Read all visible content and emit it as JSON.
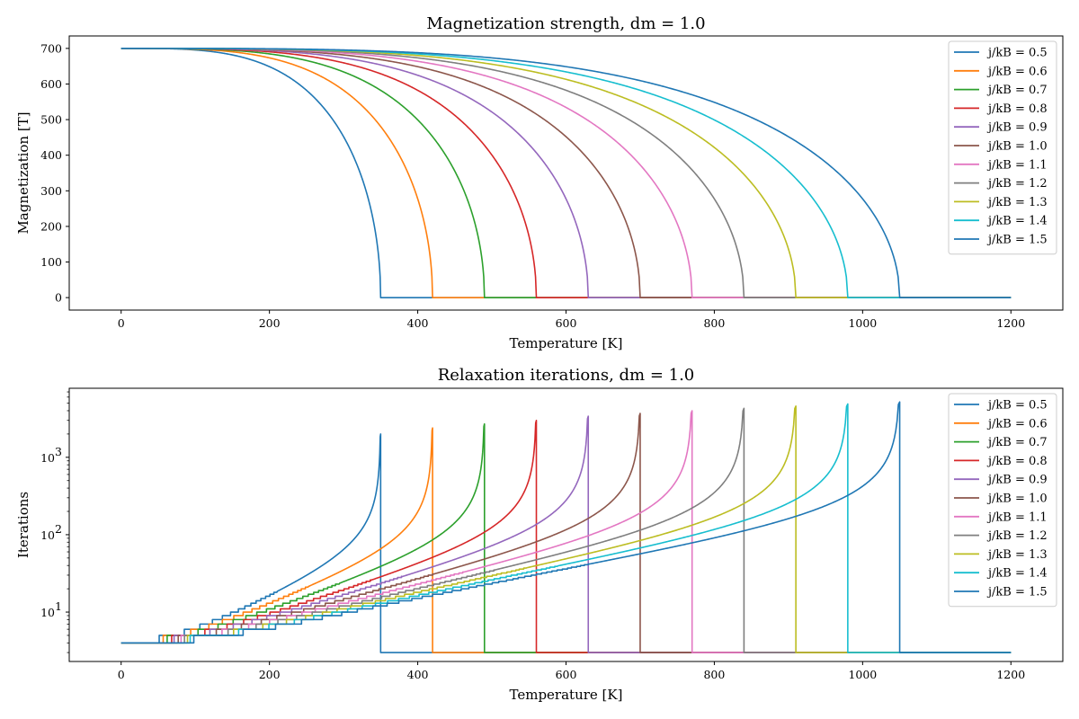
{
  "figure": {
    "bg": "#ffffff"
  },
  "chart_data": [
    {
      "type": "line",
      "title": "Magnetization strength, dm = 1.0",
      "xlabel": "Temperature [K]",
      "ylabel": "Magnetization [T]",
      "xlim": [
        -70,
        1270
      ],
      "ylim": [
        -35,
        735
      ],
      "yscale": "linear",
      "xticks": [
        0,
        200,
        400,
        600,
        800,
        1000,
        1200
      ],
      "yticks": [
        0,
        100,
        200,
        300,
        400,
        500,
        600,
        700
      ],
      "xtick_labels": [
        "0",
        "200",
        "400",
        "600",
        "800",
        "1000",
        "1200"
      ],
      "ytick_labels": [
        "0",
        "100",
        "200",
        "300",
        "400",
        "500",
        "600",
        "700"
      ],
      "legend_position": "upper-right",
      "m_max": 700,
      "series": [
        {
          "name": "j/kB = 0.5",
          "color": "#1f77b4",
          "tc": 350
        },
        {
          "name": "j/kB = 0.6",
          "color": "#ff7f0e",
          "tc": 420
        },
        {
          "name": "j/kB = 0.7",
          "color": "#2ca02c",
          "tc": 490
        },
        {
          "name": "j/kB = 0.8",
          "color": "#d62728",
          "tc": 560
        },
        {
          "name": "j/kB = 0.9",
          "color": "#9467bd",
          "tc": 630
        },
        {
          "name": "j/kB = 1.0",
          "color": "#8c564b",
          "tc": 700
        },
        {
          "name": "j/kB = 1.1",
          "color": "#e377c2",
          "tc": 770
        },
        {
          "name": "j/kB = 1.2",
          "color": "#7f7f7f",
          "tc": 840
        },
        {
          "name": "j/kB = 1.3",
          "color": "#bcbd22",
          "tc": 910
        },
        {
          "name": "j/kB = 1.4",
          "color": "#17becf",
          "tc": 980
        },
        {
          "name": "j/kB = 1.5",
          "color": "#1f77b4",
          "tc": 1050
        }
      ]
    },
    {
      "type": "line",
      "title": "Relaxation iterations, dm = 1.0",
      "xlabel": "Temperature [K]",
      "ylabel": "Iterations",
      "xlim": [
        -70,
        1270
      ],
      "ylim": [
        2.3,
        7800
      ],
      "yscale": "log",
      "xticks": [
        0,
        200,
        400,
        600,
        800,
        1000,
        1200
      ],
      "yticks": [
        10,
        100,
        1000
      ],
      "xtick_labels": [
        "0",
        "200",
        "400",
        "600",
        "800",
        "1000",
        "1200"
      ],
      "ytick_labels": [
        "10",
        "10",
        "10"
      ],
      "ytick_exponents": [
        "1",
        "2",
        "3"
      ],
      "legend_position": "upper-right",
      "series": [
        {
          "name": "j/kB = 0.5",
          "color": "#1f77b4",
          "tc": 350,
          "peak": 2000
        },
        {
          "name": "j/kB = 0.6",
          "color": "#ff7f0e",
          "tc": 420,
          "peak": 2400
        },
        {
          "name": "j/kB = 0.7",
          "color": "#2ca02c",
          "tc": 490,
          "peak": 2700
        },
        {
          "name": "j/kB = 0.8",
          "color": "#d62728",
          "tc": 560,
          "peak": 3000
        },
        {
          "name": "j/kB = 0.9",
          "color": "#9467bd",
          "tc": 630,
          "peak": 3400
        },
        {
          "name": "j/kB = 1.0",
          "color": "#8c564b",
          "tc": 700,
          "peak": 3700
        },
        {
          "name": "j/kB = 1.1",
          "color": "#e377c2",
          "tc": 770,
          "peak": 4000
        },
        {
          "name": "j/kB = 1.2",
          "color": "#7f7f7f",
          "tc": 840,
          "peak": 4300
        },
        {
          "name": "j/kB = 1.3",
          "color": "#bcbd22",
          "tc": 910,
          "peak": 4600
        },
        {
          "name": "j/kB = 1.4",
          "color": "#17becf",
          "tc": 980,
          "peak": 4900
        },
        {
          "name": "j/kB = 1.5",
          "color": "#1f77b4",
          "tc": 1050,
          "peak": 5200
        }
      ]
    }
  ]
}
